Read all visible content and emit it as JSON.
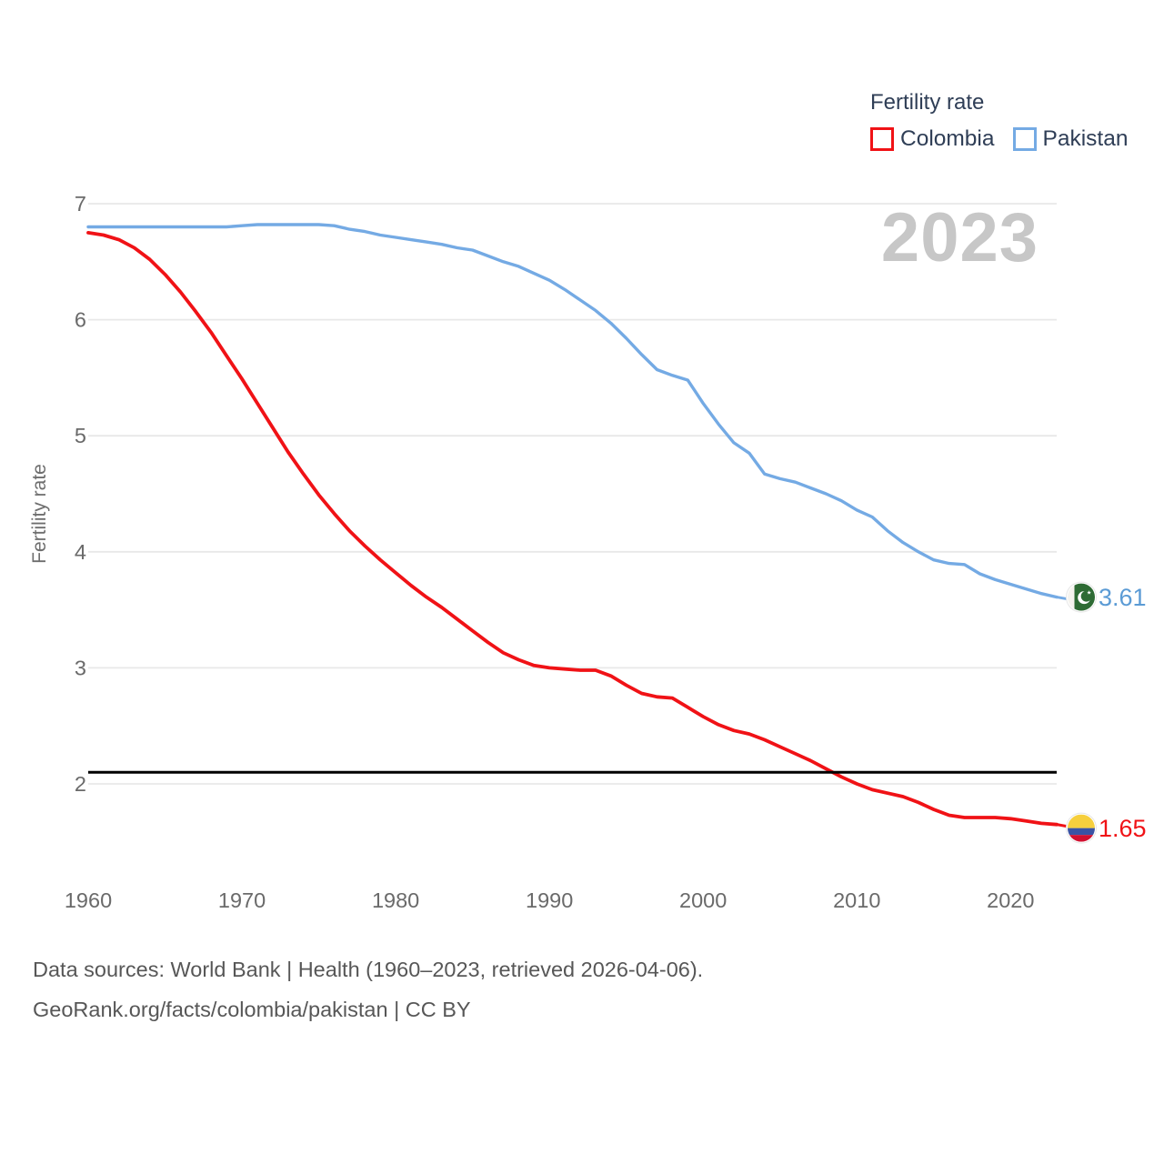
{
  "watermark": "2023",
  "legend": {
    "title": "Fertility rate",
    "items": [
      {
        "label": "Colombia",
        "color": "#f01216"
      },
      {
        "label": "Pakistan",
        "color": "#74aae4"
      }
    ]
  },
  "footer": {
    "line1": "Data sources: World Bank | Health (1960–2023, retrieved 2026-04-06).",
    "line2": "GeoRank.org/facts/colombia/pakistan | CC BY"
  },
  "colors": {
    "grid": "#e8e8e8",
    "tick_text": "#6a6a6a",
    "replacement_line": "#000000"
  },
  "chart_data": {
    "type": "line",
    "title": "Fertility rate",
    "ylabel": "Fertility rate",
    "grid": true,
    "legend_position": "top-right",
    "x_start": 1960,
    "x_end": 2023,
    "x_ticks": [
      1960,
      1970,
      1980,
      1990,
      2000,
      2010,
      2020
    ],
    "y_ticks": [
      2,
      3,
      4,
      5,
      6,
      7
    ],
    "ylim": [
      1.45,
      7.15
    ],
    "replacement_line_value": 2.1,
    "series": [
      {
        "name": "Colombia",
        "color": "#f01216",
        "label_color": "#f01216",
        "end_value": 1.65,
        "end_label": "1.65",
        "flag": "colombia",
        "values": [
          6.75,
          6.73,
          6.69,
          6.62,
          6.52,
          6.39,
          6.24,
          6.07,
          5.89,
          5.69,
          5.49,
          5.28,
          5.07,
          4.86,
          4.67,
          4.49,
          4.33,
          4.18,
          4.05,
          3.93,
          3.82,
          3.71,
          3.61,
          3.52,
          3.42,
          3.32,
          3.22,
          3.13,
          3.07,
          3.02,
          3.0,
          2.99,
          2.98,
          2.98,
          2.93,
          2.85,
          2.78,
          2.75,
          2.74,
          2.66,
          2.58,
          2.51,
          2.46,
          2.43,
          2.38,
          2.32,
          2.26,
          2.2,
          2.13,
          2.06,
          2.0,
          1.95,
          1.92,
          1.89,
          1.84,
          1.78,
          1.73,
          1.71,
          1.71,
          1.71,
          1.7,
          1.68,
          1.66,
          1.65
        ]
      },
      {
        "name": "Pakistan",
        "color": "#74aae4",
        "label_color": "#5b9bd5",
        "end_value": 3.61,
        "end_label": "3.61",
        "flag": "pakistan",
        "values": [
          6.8,
          6.8,
          6.8,
          6.8,
          6.8,
          6.8,
          6.8,
          6.8,
          6.8,
          6.8,
          6.81,
          6.82,
          6.82,
          6.82,
          6.82,
          6.82,
          6.81,
          6.78,
          6.76,
          6.73,
          6.71,
          6.69,
          6.67,
          6.65,
          6.62,
          6.6,
          6.55,
          6.5,
          6.46,
          6.4,
          6.34,
          6.26,
          6.17,
          6.08,
          5.97,
          5.84,
          5.7,
          5.57,
          5.52,
          5.48,
          5.28,
          5.1,
          4.94,
          4.85,
          4.67,
          4.63,
          4.6,
          4.55,
          4.5,
          4.44,
          4.36,
          4.3,
          4.18,
          4.08,
          4.0,
          3.93,
          3.9,
          3.89,
          3.81,
          3.76,
          3.72,
          3.68,
          3.64,
          3.61
        ]
      }
    ]
  }
}
